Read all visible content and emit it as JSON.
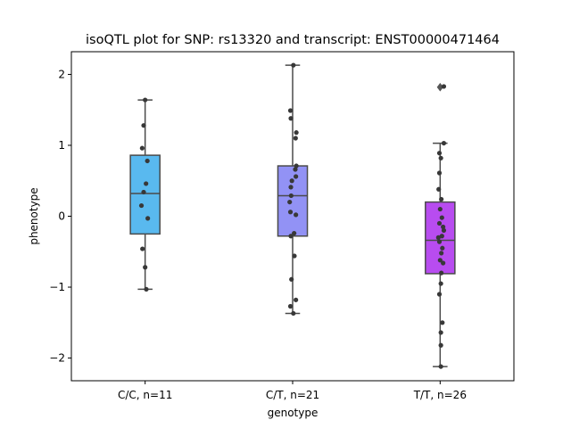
{
  "chart_data": {
    "type": "box",
    "title": "isoQTL plot for SNP: rs13320 and transcript: ENST00000471464",
    "xlabel": "genotype",
    "ylabel": "phenotype",
    "ylim": [
      -2.32,
      2.32
    ],
    "yticks": [
      -2,
      -1,
      0,
      1,
      2
    ],
    "yticklabels": [
      "−2",
      "−1",
      "0",
      "1",
      "2"
    ],
    "categories": [
      "C/C, n=11",
      "C/T, n=21",
      "T/T, n=26"
    ],
    "boxes": [
      {
        "name": "C/C, n=11",
        "color": "#59b9ef",
        "whisker_low": -1.03,
        "q1": -0.25,
        "median": 0.32,
        "q3": 0.86,
        "whisker_high": 1.64,
        "outliers": []
      },
      {
        "name": "C/T, n=21",
        "color": "#9292f5",
        "whisker_low": -1.37,
        "q1": -0.28,
        "median": 0.29,
        "q3": 0.71,
        "whisker_high": 2.13,
        "outliers": []
      },
      {
        "name": "T/T, n=26",
        "color": "#b84cf0",
        "whisker_low": -2.12,
        "q1": -0.81,
        "median": -0.34,
        "q3": 0.2,
        "whisker_high": 1.03,
        "outliers": [
          1.82
        ]
      }
    ],
    "points": [
      [
        {
          "dx": 0.0,
          "y": 1.64
        },
        {
          "dx": -0.1,
          "y": 1.28
        },
        {
          "dx": -0.2,
          "y": 0.96
        },
        {
          "dx": 0.15,
          "y": 0.78
        },
        {
          "dx": 0.06,
          "y": 0.46
        },
        {
          "dx": -0.1,
          "y": 0.34
        },
        {
          "dx": -0.25,
          "y": 0.15
        },
        {
          "dx": 0.18,
          "y": -0.03
        },
        {
          "dx": -0.18,
          "y": -0.46
        },
        {
          "dx": 0.0,
          "y": -0.72
        },
        {
          "dx": 0.08,
          "y": -1.03
        }
      ],
      [
        {
          "dx": 0.05,
          "y": 2.13
        },
        {
          "dx": -0.15,
          "y": 1.49
        },
        {
          "dx": -0.12,
          "y": 1.38
        },
        {
          "dx": 0.25,
          "y": 1.18
        },
        {
          "dx": 0.2,
          "y": 1.1
        },
        {
          "dx": 0.25,
          "y": 0.71
        },
        {
          "dx": 0.18,
          "y": 0.66
        },
        {
          "dx": 0.22,
          "y": 0.56
        },
        {
          "dx": -0.05,
          "y": 0.5
        },
        {
          "dx": -0.12,
          "y": 0.41
        },
        {
          "dx": -0.1,
          "y": 0.29
        },
        {
          "dx": -0.2,
          "y": 0.2
        },
        {
          "dx": -0.15,
          "y": 0.06
        },
        {
          "dx": 0.22,
          "y": 0.02
        },
        {
          "dx": 0.1,
          "y": -0.24
        },
        {
          "dx": -0.12,
          "y": -0.28
        },
        {
          "dx": 0.12,
          "y": -0.56
        },
        {
          "dx": -0.08,
          "y": -0.89
        },
        {
          "dx": 0.22,
          "y": -1.18
        },
        {
          "dx": -0.15,
          "y": -1.27
        },
        {
          "dx": 0.05,
          "y": -1.37
        }
      ],
      [
        {
          "dx": 0.25,
          "y": 1.83
        },
        {
          "dx": 0.25,
          "y": 1.03
        },
        {
          "dx": -0.05,
          "y": 0.89
        },
        {
          "dx": 0.05,
          "y": 0.82
        },
        {
          "dx": -0.05,
          "y": 0.61
        },
        {
          "dx": -0.1,
          "y": 0.38
        },
        {
          "dx": 0.08,
          "y": 0.24
        },
        {
          "dx": 0.0,
          "y": 0.1
        },
        {
          "dx": 0.12,
          "y": -0.02
        },
        {
          "dx": -0.05,
          "y": -0.1
        },
        {
          "dx": 0.2,
          "y": -0.15
        },
        {
          "dx": 0.25,
          "y": -0.2
        },
        {
          "dx": 0.12,
          "y": -0.28
        },
        {
          "dx": -0.12,
          "y": -0.3
        },
        {
          "dx": -0.05,
          "y": -0.36
        },
        {
          "dx": 0.15,
          "y": -0.45
        },
        {
          "dx": 0.08,
          "y": -0.52
        },
        {
          "dx": 0.2,
          "y": -0.66
        },
        {
          "dx": 0.0,
          "y": -0.62
        },
        {
          "dx": 0.08,
          "y": -0.8
        },
        {
          "dx": 0.05,
          "y": -0.95
        },
        {
          "dx": -0.05,
          "y": -1.1
        },
        {
          "dx": 0.15,
          "y": -1.5
        },
        {
          "dx": 0.05,
          "y": -1.64
        },
        {
          "dx": 0.05,
          "y": -1.82
        },
        {
          "dx": 0.05,
          "y": -2.12
        }
      ]
    ],
    "colors": {
      "line": "#4a4a4a",
      "point": "#383838",
      "frame": "#000000"
    },
    "grid": false,
    "legend": "none"
  }
}
